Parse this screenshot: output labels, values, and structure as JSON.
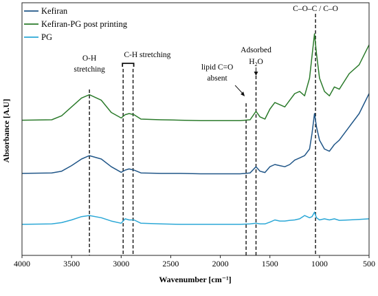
{
  "chart_data": {
    "type": "line",
    "xlabel": "Wavenumber [cm⁻¹]",
    "ylabel": "Absorbance [A.U]",
    "xlim": [
      4000,
      500
    ],
    "x_ticks": [
      "4000",
      "3500",
      "3000",
      "2500",
      "2000",
      "1500",
      "1000",
      "500"
    ],
    "grid": false,
    "legend_position": "top-left",
    "series": [
      {
        "name": "Kefiran",
        "color": "#1f5587",
        "x": [
          4000,
          3700,
          3600,
          3500,
          3400,
          3320,
          3200,
          3100,
          3000,
          2960,
          2920,
          2870,
          2800,
          2600,
          2400,
          2200,
          2000,
          1800,
          1700,
          1640,
          1600,
          1550,
          1500,
          1450,
          1400,
          1350,
          1300,
          1250,
          1200,
          1150,
          1100,
          1075,
          1050,
          1030,
          1000,
          950,
          900,
          850,
          800,
          700,
          600,
          500
        ],
        "y": [
          0.37,
          0.372,
          0.38,
          0.405,
          0.435,
          0.45,
          0.435,
          0.4,
          0.375,
          0.385,
          0.39,
          0.385,
          0.372,
          0.37,
          0.37,
          0.368,
          0.368,
          0.368,
          0.372,
          0.4,
          0.38,
          0.374,
          0.4,
          0.41,
          0.405,
          0.4,
          0.41,
          0.43,
          0.44,
          0.45,
          0.48,
          0.55,
          0.64,
          0.58,
          0.52,
          0.48,
          0.47,
          0.5,
          0.52,
          0.58,
          0.64,
          0.73
        ]
      },
      {
        "name": "Kefiran-PG post printing",
        "color": "#2a7a2a",
        "x": [
          4000,
          3700,
          3600,
          3500,
          3400,
          3320,
          3200,
          3100,
          3000,
          2960,
          2920,
          2870,
          2800,
          2600,
          2400,
          2200,
          2000,
          1800,
          1700,
          1640,
          1600,
          1550,
          1500,
          1450,
          1400,
          1350,
          1300,
          1250,
          1200,
          1150,
          1100,
          1075,
          1050,
          1030,
          1000,
          950,
          900,
          850,
          800,
          700,
          600,
          500
        ],
        "y": [
          0.61,
          0.612,
          0.63,
          0.67,
          0.71,
          0.725,
          0.7,
          0.645,
          0.62,
          0.635,
          0.64,
          0.635,
          0.615,
          0.612,
          0.61,
          0.608,
          0.608,
          0.608,
          0.612,
          0.65,
          0.625,
          0.615,
          0.66,
          0.69,
          0.68,
          0.67,
          0.7,
          0.73,
          0.74,
          0.72,
          0.8,
          0.9,
          1.0,
          0.91,
          0.8,
          0.74,
          0.72,
          0.76,
          0.75,
          0.82,
          0.86,
          0.95
        ]
      },
      {
        "name": "PG",
        "color": "#2aa7d6",
        "x": [
          4000,
          3700,
          3600,
          3500,
          3400,
          3320,
          3200,
          3100,
          3000,
          2960,
          2920,
          2870,
          2800,
          2600,
          2400,
          2200,
          2000,
          1800,
          1700,
          1640,
          1600,
          1550,
          1500,
          1450,
          1400,
          1350,
          1300,
          1250,
          1200,
          1150,
          1100,
          1075,
          1050,
          1030,
          1000,
          950,
          900,
          850,
          800,
          700,
          600,
          500
        ],
        "y": [
          0.14,
          0.142,
          0.148,
          0.16,
          0.175,
          0.18,
          0.17,
          0.155,
          0.145,
          0.165,
          0.16,
          0.16,
          0.145,
          0.142,
          0.14,
          0.14,
          0.14,
          0.14,
          0.142,
          0.145,
          0.142,
          0.142,
          0.15,
          0.16,
          0.155,
          0.155,
          0.158,
          0.16,
          0.165,
          0.18,
          0.17,
          0.175,
          0.195,
          0.17,
          0.16,
          0.165,
          0.16,
          0.165,
          0.158,
          0.16,
          0.162,
          0.165
        ]
      }
    ],
    "annotations": {
      "oh": {
        "line1": "O-H",
        "line2": "stretching",
        "x": 3320
      },
      "ch": {
        "text": "C-H stretching",
        "x1": 2980,
        "x2": 2880
      },
      "lipid": {
        "line1": "lipid C=O",
        "line2": "absent",
        "x": 1740
      },
      "adsorbed": {
        "line1": "Adsorbed",
        "h": "H",
        "sub": "2",
        "o": "O",
        "x": 1640
      },
      "coc": {
        "text": "C–O–C / C–O",
        "x": 1040
      }
    }
  }
}
